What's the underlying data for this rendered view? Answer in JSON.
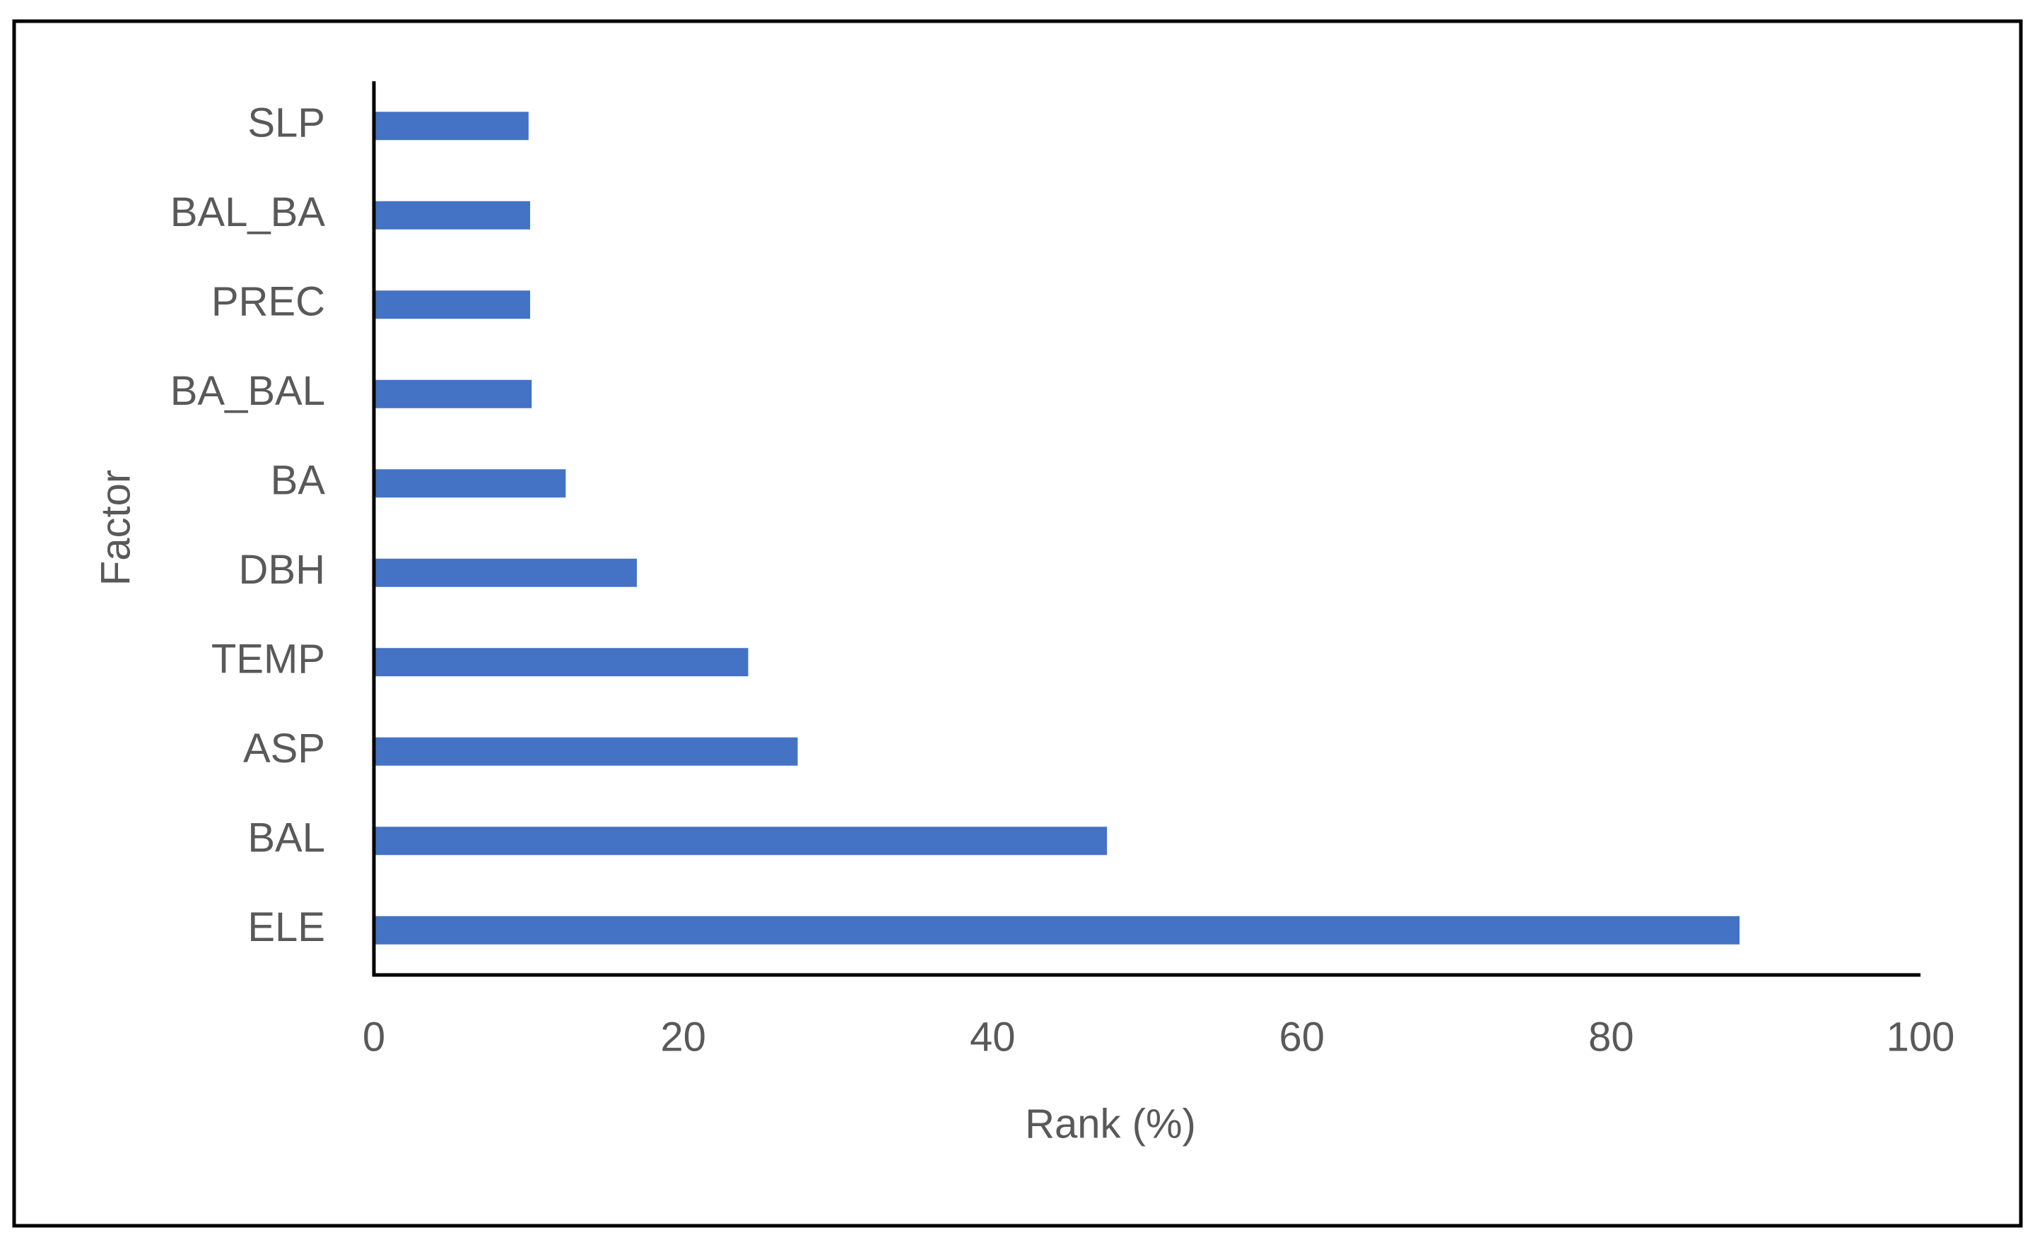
{
  "chart_data": {
    "type": "bar",
    "orientation": "horizontal",
    "x_label": "Rank (%)",
    "y_label": "Factor",
    "categories": [
      "SLP",
      "BAL_BA",
      "PREC",
      "BA_BAL",
      "BA",
      "DBH",
      "TEMP",
      "ASP",
      "BAL",
      "ELE"
    ],
    "values": [
      10.0,
      10.1,
      10.1,
      10.2,
      12.4,
      17.0,
      24.2,
      27.4,
      47.4,
      88.3
    ],
    "color": "#4472c4",
    "xlim": [
      0,
      100
    ],
    "xticks": [
      0,
      20,
      40,
      60,
      80,
      100
    ],
    "grid": false
  }
}
